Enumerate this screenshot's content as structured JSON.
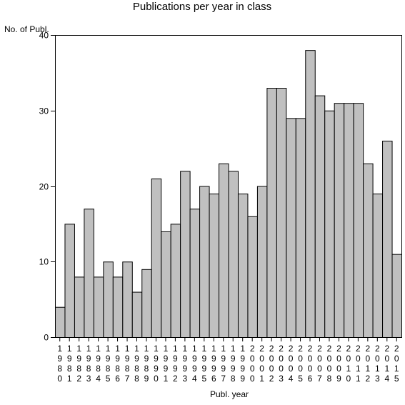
{
  "chart_data": {
    "type": "bar",
    "title": "Publications per year in class",
    "ylabel": "No. of Publ.",
    "xlabel": "Publ. year",
    "ylim": [
      0,
      40
    ],
    "yticks": [
      0,
      10,
      20,
      30,
      40
    ],
    "categories": [
      "1980",
      "1981",
      "1982",
      "1983",
      "1984",
      "1985",
      "1986",
      "1987",
      "1988",
      "1989",
      "1990",
      "1991",
      "1992",
      "1993",
      "1994",
      "1995",
      "1996",
      "1997",
      "1998",
      "1999",
      "2000",
      "2001",
      "2002",
      "2003",
      "2004",
      "2005",
      "2006",
      "2007",
      "2008",
      "2009",
      "2010",
      "2011",
      "2012",
      "2013",
      "2014",
      "2015"
    ],
    "values": [
      4,
      15,
      8,
      17,
      8,
      10,
      8,
      10,
      6,
      9,
      21,
      14,
      15,
      22,
      17,
      20,
      19,
      23,
      22,
      19,
      16,
      20,
      33,
      33,
      29,
      29,
      38,
      32,
      30,
      31,
      31,
      31,
      23,
      19,
      26,
      11
    ],
    "bar_color": "#c0c0c0",
    "grid": false,
    "legend": "none"
  }
}
